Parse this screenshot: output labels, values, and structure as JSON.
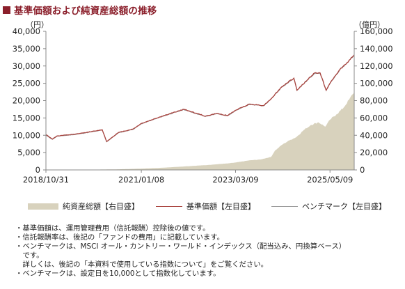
{
  "title": "基準価額および純資産総額の推移",
  "chart_data": {
    "type": "line",
    "left_axis_unit": "（円）",
    "right_axis_unit": "（億円）",
    "left_ticks": [
      "0",
      "5,000",
      "10,000",
      "15,000",
      "20,000",
      "25,000",
      "30,000",
      "35,000",
      "40,000"
    ],
    "right_ticks": [
      "0",
      "20,000",
      "40,000",
      "60,000",
      "80,000",
      "100,000",
      "120,000",
      "140,000",
      "160,000"
    ],
    "ylim_left": [
      0,
      40000
    ],
    "ylim_right": [
      0,
      160000
    ],
    "x_tick_labels": [
      "2018/10/31",
      "2021/01/08",
      "2023/03/09",
      "2025/05/09"
    ],
    "grid": false,
    "legend_position": "bottom",
    "series": [
      {
        "name": "純資産総額【右目盛】",
        "axis": "right",
        "kind": "area",
        "color": "#d8d2bd",
        "points": [
          [
            "2018/10/31",
            0
          ],
          [
            "2019/06/30",
            200
          ],
          [
            "2020/01/01",
            400
          ],
          [
            "2020/06/30",
            700
          ],
          [
            "2021/01/08",
            1500
          ],
          [
            "2021/07/01",
            2500
          ],
          [
            "2022/01/01",
            4000
          ],
          [
            "2022/07/01",
            5500
          ],
          [
            "2023/01/01",
            7500
          ],
          [
            "2023/03/09",
            8500
          ],
          [
            "2023/07/01",
            11000
          ],
          [
            "2023/10/01",
            12000
          ],
          [
            "2024/01/01",
            15000
          ],
          [
            "2024/02/01",
            22000
          ],
          [
            "2024/04/01",
            29000
          ],
          [
            "2024/06/01",
            34000
          ],
          [
            "2024/08/01",
            38000
          ],
          [
            "2024/10/01",
            46000
          ],
          [
            "2024/12/01",
            52000
          ],
          [
            "2025/02/01",
            55000
          ],
          [
            "2025/04/01",
            50000
          ],
          [
            "2025/05/09",
            58000
          ],
          [
            "2025/07/01",
            64000
          ],
          [
            "2025/09/01",
            72000
          ],
          [
            "2025/10/15",
            81000
          ],
          [
            "2025/11/28",
            90000
          ]
        ]
      },
      {
        "name": "基準価額【左目盛】",
        "axis": "left",
        "kind": "line",
        "color": "#a9443f",
        "points": [
          [
            "2018/10/31",
            10200
          ],
          [
            "2018/12/25",
            8900
          ],
          [
            "2019/01/31",
            9800
          ],
          [
            "2019/06/30",
            10300
          ],
          [
            "2019/12/31",
            11300
          ],
          [
            "2020/02/15",
            11600
          ],
          [
            "2020/03/23",
            8200
          ],
          [
            "2020/06/30",
            10800
          ],
          [
            "2020/10/31",
            11800
          ],
          [
            "2021/01/08",
            13400
          ],
          [
            "2021/06/30",
            15500
          ],
          [
            "2021/12/31",
            17500
          ],
          [
            "2022/06/30",
            15500
          ],
          [
            "2022/09/30",
            16300
          ],
          [
            "2022/12/31",
            15700
          ],
          [
            "2023/03/09",
            17200
          ],
          [
            "2023/06/30",
            19000
          ],
          [
            "2023/10/31",
            18600
          ],
          [
            "2023/12/31",
            20500
          ],
          [
            "2024/03/31",
            24000
          ],
          [
            "2024/07/10",
            26500
          ],
          [
            "2024/08/05",
            23000
          ],
          [
            "2024/10/31",
            26000
          ],
          [
            "2024/12/31",
            28000
          ],
          [
            "2025/02/15",
            28000
          ],
          [
            "2025/04/07",
            23000
          ],
          [
            "2025/05/09",
            25000
          ],
          [
            "2025/07/31",
            29000
          ],
          [
            "2025/09/30",
            31000
          ],
          [
            "2025/11/28",
            33200
          ]
        ]
      },
      {
        "name": "ベンチマーク【左目盛】",
        "axis": "left",
        "kind": "line",
        "color": "#9a9a9a",
        "points": [
          [
            "2018/10/31",
            10000
          ],
          [
            "2018/12/25",
            8800
          ],
          [
            "2019/01/31",
            9700
          ],
          [
            "2019/06/30",
            10200
          ],
          [
            "2019/12/31",
            11200
          ],
          [
            "2020/02/15",
            11500
          ],
          [
            "2020/03/23",
            8100
          ],
          [
            "2020/06/30",
            10700
          ],
          [
            "2020/10/31",
            11700
          ],
          [
            "2021/01/08",
            13300
          ],
          [
            "2021/06/30",
            15400
          ],
          [
            "2021/12/31",
            17400
          ],
          [
            "2022/06/30",
            15400
          ],
          [
            "2022/09/30",
            16200
          ],
          [
            "2022/12/31",
            15600
          ],
          [
            "2023/03/09",
            17100
          ],
          [
            "2023/06/30",
            18900
          ],
          [
            "2023/10/31",
            18500
          ],
          [
            "2023/12/31",
            20400
          ],
          [
            "2024/03/31",
            23900
          ],
          [
            "2024/07/10",
            26400
          ],
          [
            "2024/08/05",
            22900
          ],
          [
            "2024/10/31",
            25900
          ],
          [
            "2024/12/31",
            27900
          ],
          [
            "2025/02/15",
            27900
          ],
          [
            "2025/04/07",
            22900
          ],
          [
            "2025/05/09",
            24900
          ],
          [
            "2025/07/31",
            28900
          ],
          [
            "2025/09/30",
            30900
          ],
          [
            "2025/11/28",
            33100
          ]
        ]
      }
    ]
  },
  "legend": {
    "nav_total": "純資産総額【右目盛】",
    "nav": "基準価額【左目盛】",
    "benchmark": "ベンチマーク【左目盛】"
  },
  "notes": [
    "・基準価額は、運用管理費用（信託報酬）控除後の値です。",
    "・信託報酬率は、後記の「ファンドの費用」に記載しています。",
    "・ベンチマークは、MSCI オール・カントリー・ワールド・インデックス（配当込み、円換算ベース）",
    "　です。",
    "　詳しくは、後記の「本資料で使用している指数について」をご覧ください。",
    "・ベンチマークは、設定日を10,000として指数化しています。"
  ]
}
